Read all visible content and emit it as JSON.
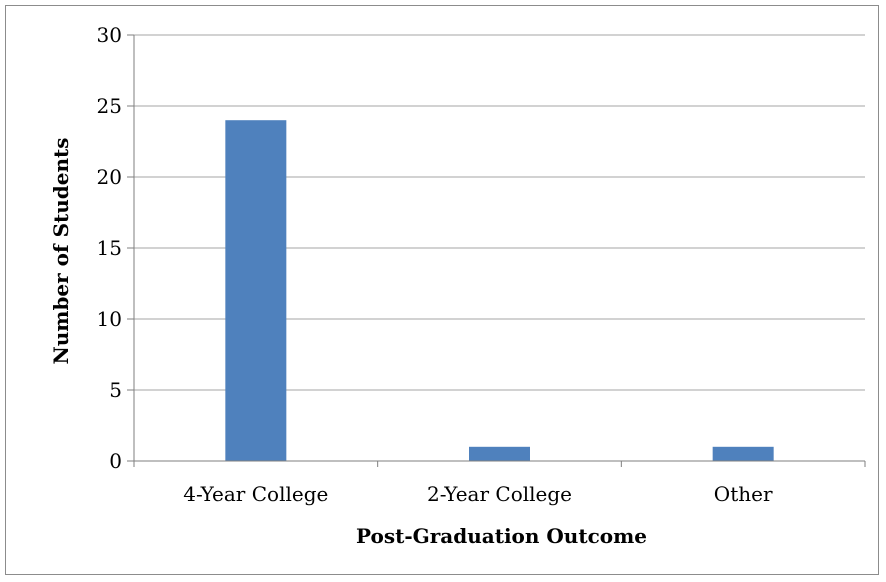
{
  "chart_data": {
    "type": "bar",
    "categories": [
      "4-Year College",
      "2-Year College",
      "Other"
    ],
    "values": [
      24,
      1,
      1
    ],
    "title": "",
    "xlabel": "Post-Graduation Outcome",
    "ylabel": "Number of Students",
    "ylim": [
      0,
      30
    ],
    "yticks": [
      0,
      5,
      10,
      15,
      20,
      25,
      30
    ],
    "grid": true,
    "legend": "none",
    "colors": {
      "bar": "#4f81bd",
      "grid": "#a6a6a6",
      "axis": "#7f7f7f"
    }
  }
}
